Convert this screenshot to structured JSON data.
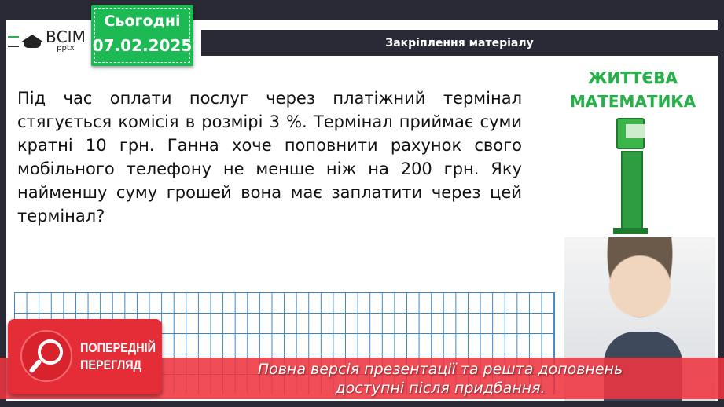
{
  "logo": {
    "name": "ВСІМ",
    "sub": "pptx"
  },
  "date_badge": {
    "label": "Сьогодні",
    "date": "07.02.2025"
  },
  "header": {
    "title": "Закріплення матеріалу"
  },
  "problem": {
    "text": "Під час оплати послуг через платіжний термінал стягується комісія в розмірі 3 %. Термінал приймає суми кратні 10 грн. Ганна хоче поповнити рахунок свого мобільного телефону не менше ніж на 200 грн. Яку найменшу суму грошей вона має заплатити через цей термінал?"
  },
  "side": {
    "title_line1": "ЖИТТЄВА",
    "title_line2": "МАТЕМАТИКА"
  },
  "preview": {
    "line1": "ПОПЕРЕДНІЙ",
    "line2": "ПЕРЕГЛЯД"
  },
  "banner": {
    "line1": "Повна версія презентації та решта доповнень",
    "line2": "доступні після придбання."
  },
  "colors": {
    "accent_green": "#1db954",
    "banner_red": "#ee3440",
    "dark": "#2a2a36",
    "grid_blue": "#3a86c8"
  }
}
